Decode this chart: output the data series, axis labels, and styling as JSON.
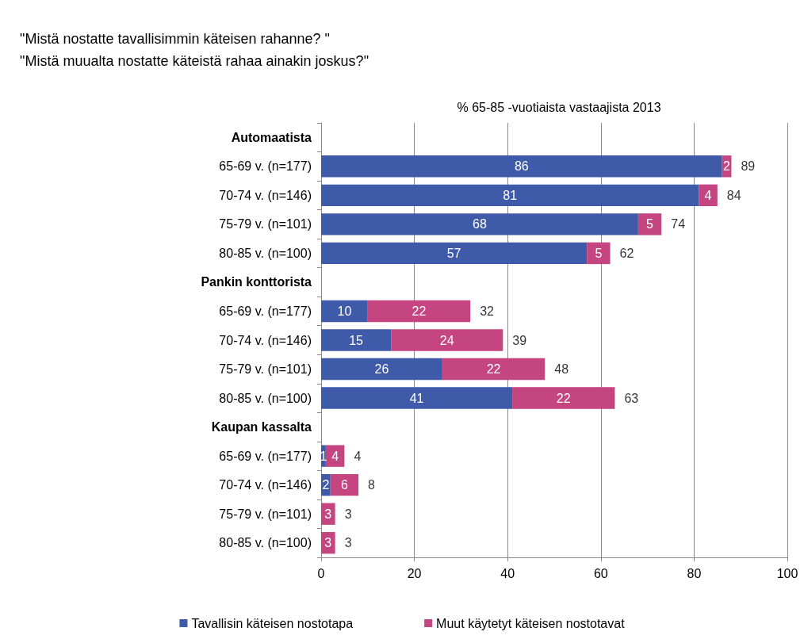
{
  "chart_data": {
    "type": "bar",
    "orientation": "horizontal",
    "stacked": true,
    "title": "\"Mistä nostatte tavallisimmin käteisen rahanne? \"\n\"Mistä muualta nostatte käteistä rahaa ainakin joskus?\"",
    "subtitle": "% 65-85 -vuotiaista vastaajista 2013",
    "categories": [
      "Automaatista",
      "65-69 v. (n=177)",
      "70-74 v. (n=146)",
      "75-79 v. (n=101)",
      "80-85 v. (n=100)",
      "Pankin konttorista",
      "65-69 v. (n=177)",
      "70-74 v. (n=146)",
      "75-79 v. (n=101)",
      "80-85 v. (n=100)",
      "Kaupan kassalta",
      "65-69 v. (n=177)",
      "70-74 v. (n=146)",
      "75-79 v. (n=101)",
      "80-85 v. (n=100)"
    ],
    "series": [
      {
        "name": "Tavallisin käteisen nostotapa",
        "color": "#3f5aa8",
        "values": [
          null,
          86,
          81,
          68,
          57,
          null,
          10,
          15,
          26,
          41,
          null,
          1,
          2,
          null,
          null
        ]
      },
      {
        "name": "Muut käytetyt käteisen nostotavat",
        "color": "#c4457f",
        "values": [
          null,
          2,
          4,
          5,
          5,
          null,
          22,
          24,
          22,
          22,
          null,
          4,
          6,
          3,
          3
        ]
      }
    ],
    "totals": [
      null,
      "89",
      "84",
      "74",
      "62",
      null,
      "32",
      "39",
      "48",
      "63",
      null,
      "4",
      "8",
      "3",
      "3"
    ],
    "data_labels": true,
    "xlim": [
      0,
      100
    ],
    "xticks": [
      0,
      20,
      40,
      60,
      80,
      100
    ],
    "grid": "x",
    "legend": "bottom"
  }
}
